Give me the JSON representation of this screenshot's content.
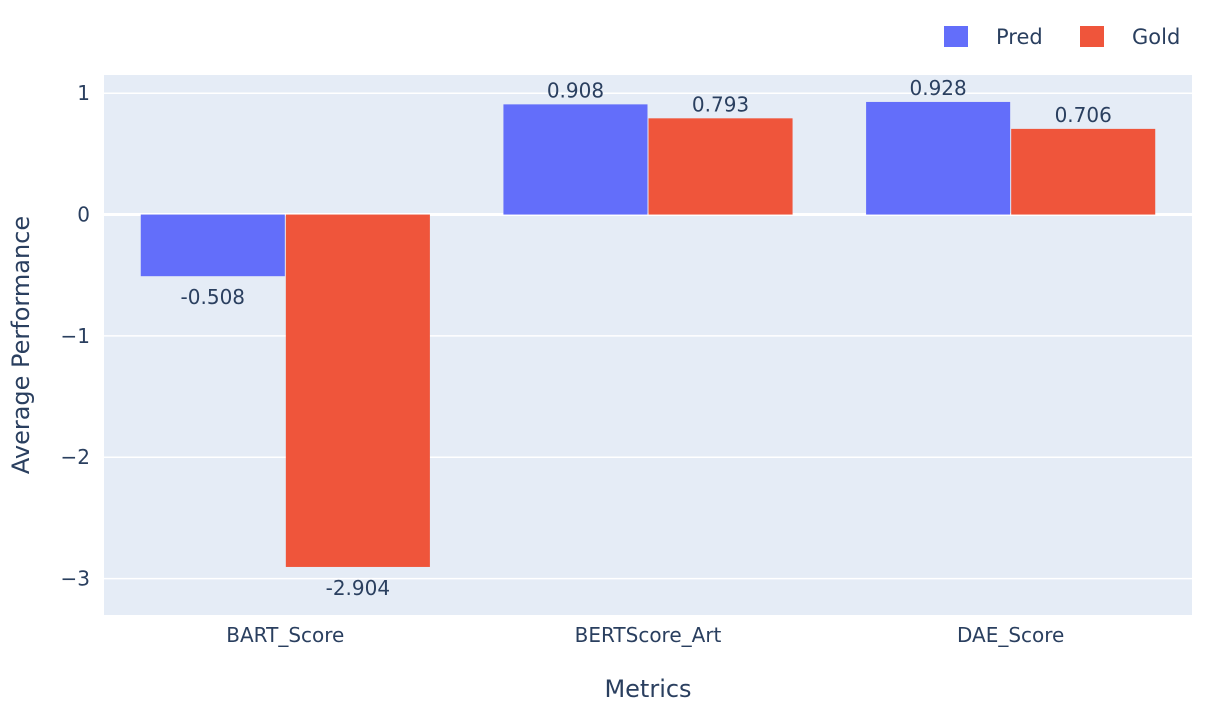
{
  "chart_data": {
    "type": "bar",
    "categories": [
      "BART_Score",
      "BERTScore_Art",
      "DAE_Score"
    ],
    "series": [
      {
        "name": "Pred",
        "values": [
          -0.508,
          0.908,
          0.928
        ],
        "labels": [
          "-0.508",
          "0.908",
          "0.928"
        ],
        "color": "#636efa"
      },
      {
        "name": "Gold",
        "values": [
          -2.904,
          0.793,
          0.706
        ],
        "labels": [
          "-2.904",
          "0.793",
          "0.706"
        ],
        "color": "#ef553b"
      }
    ],
    "xlabel": "Metrics",
    "ylabel": "Average Performance",
    "ylim": [
      -3.3,
      1.15
    ],
    "yticks": [
      1,
      0,
      -1,
      -2,
      -3
    ],
    "ytick_labels": [
      "1",
      "0",
      "−1",
      "−2",
      "−3"
    ],
    "grid": true,
    "legend_position": "top-right",
    "plot_background": "#e5ecf6"
  }
}
